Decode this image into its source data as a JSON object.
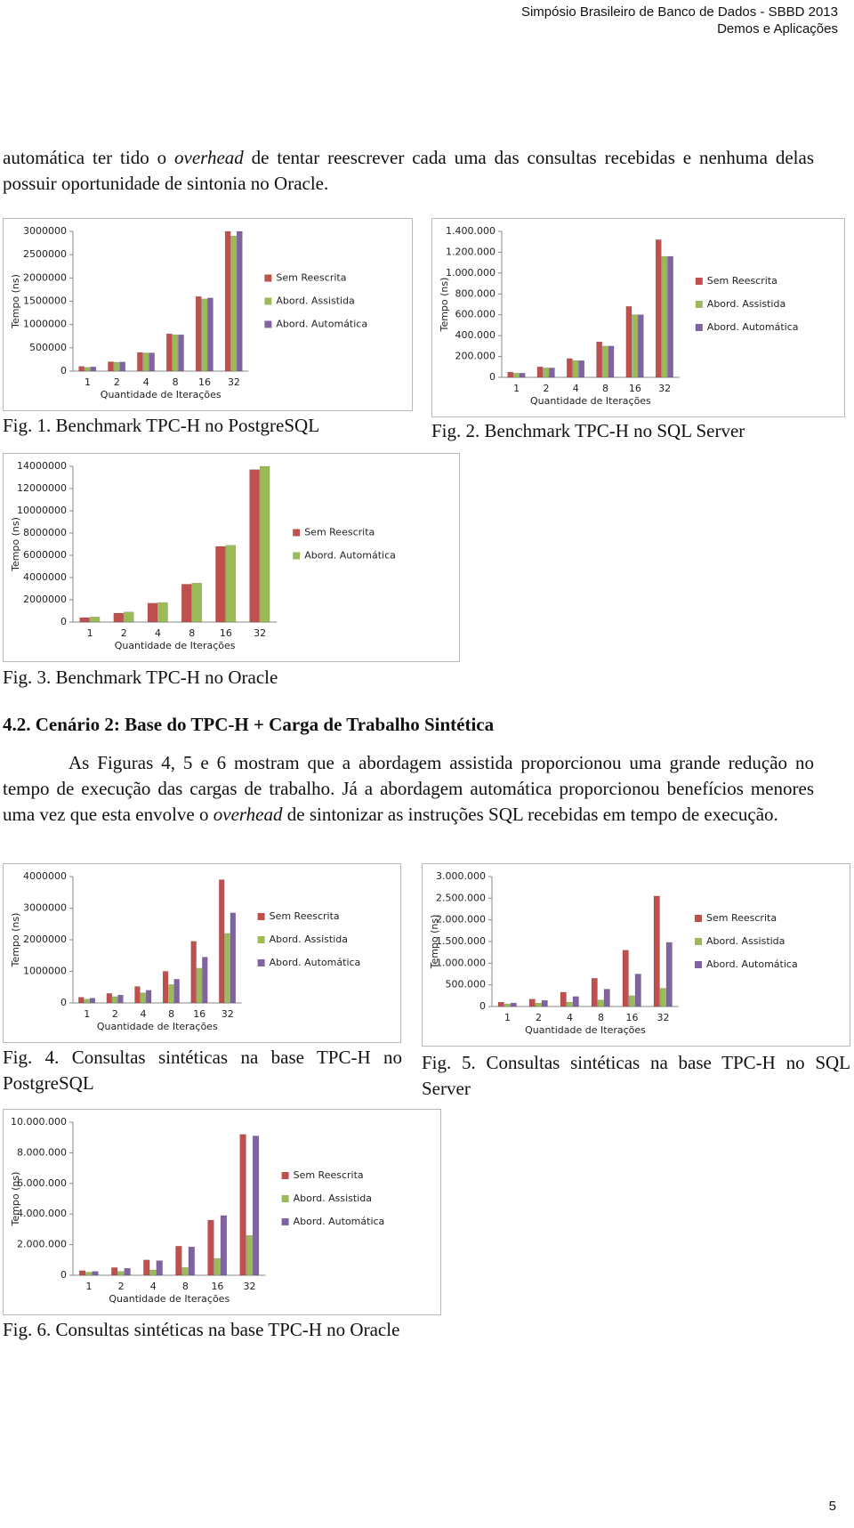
{
  "header": {
    "lines": [
      "Simpósio Brasileiro de Banco de Dados - SBBD 2013",
      "Demos e Aplicações"
    ]
  },
  "paragraphs": [
    [
      "automática ter tido o ",
      "overhead",
      " de tentar reescrever cada uma das consultas recebidas e nenhuma delas possuir oportunidade de sintonia no Oracle."
    ],
    [
      "As Figuras 4, 5 e 6 mostram que a abordagem assistida proporcionou uma grande redução no tempo de execução das cargas de trabalho. Já a abordagem automática proporcionou benefícios menores uma vez que esta envolve o ",
      "overhead",
      " de sintonizar as instruções SQL recebidas em tempo de execução."
    ]
  ],
  "section_heading": "4.2. Cenário 2: Base do TPC-H + Carga de Trabalho Sintética",
  "page_number": "5",
  "chart_data": [
    {
      "type": "bar",
      "caption": "Fig. 1. Benchmark TPC-H no PostgreSQL",
      "y_label": "Tempo (ns)",
      "x_label": "Quantidade de Iterações",
      "legend": "right",
      "categories": [
        "1",
        "2",
        "4",
        "8",
        "16",
        "32"
      ],
      "series": [
        {
          "name": "Sem Reescrita",
          "color": "#c0504d",
          "values": [
            100000,
            200000,
            400000,
            800000,
            1600000,
            3000000
          ]
        },
        {
          "name": "Abord. Assistida",
          "color": "#9bbb59",
          "values": [
            80000,
            190000,
            390000,
            780000,
            1550000,
            2900000
          ]
        },
        {
          "name": "Abord. Automática",
          "color": "#8064a2",
          "values": [
            90000,
            195000,
            390000,
            780000,
            1570000,
            3000000
          ]
        }
      ],
      "ylim": [
        0,
        3000000
      ],
      "yticks": [
        0,
        500000,
        1000000,
        1500000,
        2000000,
        2500000,
        3000000
      ]
    },
    {
      "type": "bar",
      "caption": "Fig. 2. Benchmark TPC-H no SQL Server",
      "y_label": "Tempo (ns)",
      "x_label": "Quantidade de Iterações",
      "legend": "right",
      "categories": [
        "1",
        "2",
        "4",
        "8",
        "16",
        "32"
      ],
      "series": [
        {
          "name": "Sem Reescrita",
          "color": "#c0504d",
          "values": [
            50000,
            100000,
            180000,
            340000,
            680000,
            1320000
          ]
        },
        {
          "name": "Abord. Assistida",
          "color": "#9bbb59",
          "values": [
            40000,
            90000,
            160000,
            300000,
            600000,
            1160000
          ]
        },
        {
          "name": "Abord. Automática",
          "color": "#8064a2",
          "values": [
            40000,
            90000,
            160000,
            300000,
            600000,
            1160000
          ]
        }
      ],
      "ylim": [
        0,
        1400000
      ],
      "yticks": [
        0,
        {
          "value": 200000,
          "label": "200.000"
        },
        {
          "value": 400000,
          "label": "400.000"
        },
        {
          "value": 600000,
          "label": "600.000"
        },
        {
          "value": 800000,
          "label": "800.000"
        },
        {
          "value": 1000000,
          "label": "1.000.000"
        },
        {
          "value": 1200000,
          "label": "1.200.000"
        },
        {
          "value": 1400000,
          "label": "1.400.000"
        }
      ]
    },
    {
      "type": "bar",
      "caption": "Fig. 3. Benchmark TPC-H no Oracle",
      "y_label": "Tempo (ns)",
      "x_label": "Quantidade de Iterações",
      "legend": "right",
      "categories": [
        "1",
        "2",
        "4",
        "8",
        "16",
        "32"
      ],
      "series": [
        {
          "name": "Sem Reescrita",
          "color": "#c0504d",
          "values": [
            400000,
            800000,
            1700000,
            3400000,
            6800000,
            13700000
          ]
        },
        {
          "name": "Abord. Automática",
          "color": "#9bbb59",
          "values": [
            450000,
            900000,
            1750000,
            3500000,
            6900000,
            14000000
          ]
        }
      ],
      "ylim": [
        0,
        14000000
      ],
      "yticks": [
        0,
        2000000,
        4000000,
        6000000,
        8000000,
        10000000,
        12000000,
        14000000
      ]
    },
    {
      "type": "bar",
      "caption": "Fig. 4. Consultas sintéticas na base TPC-H no PostgreSQL",
      "y_label": "Tempo (ns)",
      "x_label": "Quantidade de Iterações",
      "legend": "right",
      "categories": [
        "1",
        "2",
        "4",
        "8",
        "16",
        "32"
      ],
      "series": [
        {
          "name": "Sem Reescrita",
          "color": "#c0504d",
          "values": [
            180000,
            300000,
            520000,
            1000000,
            1950000,
            3900000
          ]
        },
        {
          "name": "Abord. Assistida",
          "color": "#9bbb59",
          "values": [
            120000,
            200000,
            320000,
            580000,
            1100000,
            2200000
          ]
        },
        {
          "name": "Abord. Automática",
          "color": "#8064a2",
          "values": [
            150000,
            250000,
            400000,
            750000,
            1450000,
            2850000
          ]
        }
      ],
      "ylim": [
        0,
        4000000
      ],
      "yticks": [
        0,
        1000000,
        2000000,
        3000000,
        4000000
      ]
    },
    {
      "type": "bar",
      "caption": "Fig. 5. Consultas sintéticas na base TPC-H no SQL Server",
      "y_label": "Tempo (ns)",
      "x_label": "Quantidade de Iterações",
      "legend": "right",
      "categories": [
        "1",
        "2",
        "4",
        "8",
        "16",
        "32"
      ],
      "series": [
        {
          "name": "Sem Reescrita",
          "color": "#c0504d",
          "values": [
            100000,
            170000,
            330000,
            650000,
            1300000,
            2550000
          ]
        },
        {
          "name": "Abord. Assistida",
          "color": "#9bbb59",
          "values": [
            60000,
            80000,
            100000,
            150000,
            250000,
            420000
          ]
        },
        {
          "name": "Abord. Automática",
          "color": "#8064a2",
          "values": [
            80000,
            140000,
            230000,
            400000,
            750000,
            1480000
          ]
        }
      ],
      "ylim": [
        0,
        3000000
      ],
      "yticks": [
        0,
        {
          "value": 500000,
          "label": "500.000"
        },
        {
          "value": 1000000,
          "label": "1.000.000"
        },
        {
          "value": 1500000,
          "label": "1.500.000"
        },
        {
          "value": 2000000,
          "label": "2.000.000"
        },
        {
          "value": 2500000,
          "label": "2.500.000"
        },
        {
          "value": 3000000,
          "label": "3.000.000"
        }
      ]
    },
    {
      "type": "bar",
      "caption": "Fig. 6. Consultas sintéticas na base TPC-H no Oracle",
      "y_label": "Tempo (ns)",
      "x_label": "Quantidade de Iterações",
      "legend": "right",
      "categories": [
        "1",
        "2",
        "4",
        "8",
        "16",
        "32"
      ],
      "series": [
        {
          "name": "Sem Reescrita",
          "color": "#c0504d",
          "values": [
            300000,
            500000,
            1000000,
            1900000,
            3600000,
            9200000
          ]
        },
        {
          "name": "Abord. Assistida",
          "color": "#9bbb59",
          "values": [
            200000,
            250000,
            350000,
            500000,
            1100000,
            2600000
          ]
        },
        {
          "name": "Abord. Automática",
          "color": "#8064a2",
          "values": [
            250000,
            450000,
            950000,
            1850000,
            3900000,
            9100000
          ]
        }
      ],
      "ylim": [
        0,
        10000000
      ],
      "yticks": [
        0,
        {
          "value": 2000000,
          "label": "2.000.000"
        },
        {
          "value": 4000000,
          "label": "4.000.000"
        },
        {
          "value": 6000000,
          "label": "6.000.000"
        },
        {
          "value": 8000000,
          "label": "8.000.000"
        },
        {
          "value": 10000000,
          "label": "10.000.000"
        }
      ]
    }
  ]
}
